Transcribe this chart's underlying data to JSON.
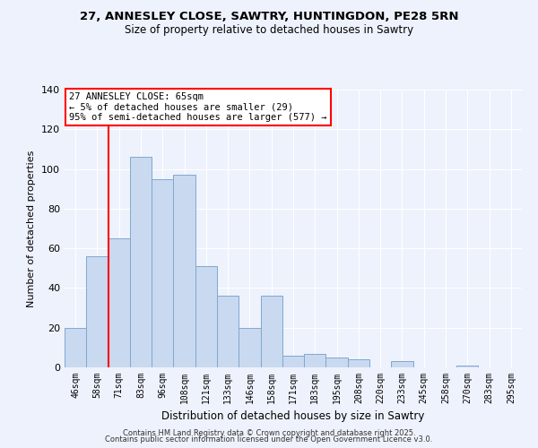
{
  "title1": "27, ANNESLEY CLOSE, SAWTRY, HUNTINGDON, PE28 5RN",
  "title2": "Size of property relative to detached houses in Sawtry",
  "xlabel": "Distribution of detached houses by size in Sawtry",
  "ylabel": "Number of detached properties",
  "categories": [
    "46sqm",
    "58sqm",
    "71sqm",
    "83sqm",
    "96sqm",
    "108sqm",
    "121sqm",
    "133sqm",
    "146sqm",
    "158sqm",
    "171sqm",
    "183sqm",
    "195sqm",
    "208sqm",
    "220sqm",
    "233sqm",
    "245sqm",
    "258sqm",
    "270sqm",
    "283sqm",
    "295sqm"
  ],
  "values": [
    20,
    56,
    65,
    106,
    95,
    97,
    51,
    36,
    20,
    36,
    6,
    7,
    5,
    4,
    0,
    3,
    0,
    0,
    1,
    0,
    0
  ],
  "bar_color": "#c9d9f0",
  "bar_edge_color": "#7fa8d0",
  "bar_width": 1.0,
  "ylim": [
    0,
    140
  ],
  "yticks": [
    0,
    20,
    40,
    60,
    80,
    100,
    120,
    140
  ],
  "vline_x": 1.5,
  "vline_color": "red",
  "annotation_title": "27 ANNESLEY CLOSE: 65sqm",
  "annotation_line1": "← 5% of detached houses are smaller (29)",
  "annotation_line2": "95% of semi-detached houses are larger (577) →",
  "annotation_box_color": "#ffffff",
  "annotation_box_edge": "red",
  "background_color": "#eef2fc",
  "footer1": "Contains HM Land Registry data © Crown copyright and database right 2025.",
  "footer2": "Contains public sector information licensed under the Open Government Licence v3.0."
}
